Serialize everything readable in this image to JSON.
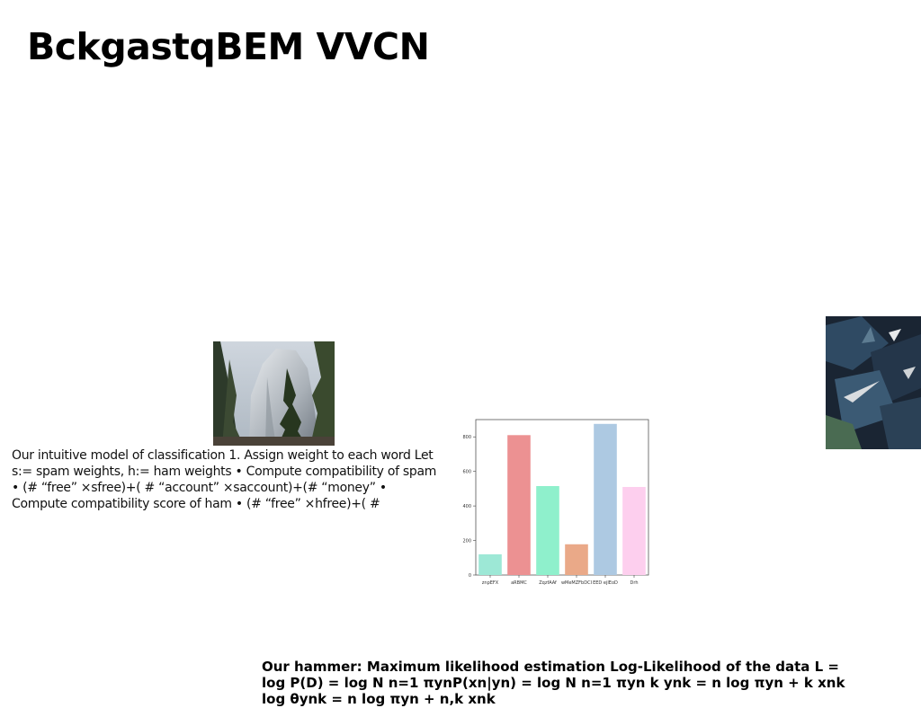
{
  "slide": {
    "title": "BckgastqBEM VVCN",
    "body_text": "Our intuitive model of classification 1. Assign weight to each word Let s:= spam weights, h:= ham weights • Compute compatibility of spam • (# “free” ×sfree)+( # “account” ×saccount)+(# “money” • Compute compatibility score of ham • (# “free” ×hfree)+( #",
    "bottom_text": "Our hammer: Maximum likelihood estimation Log-Likelihood of the data L = log P(D) = log N  n=1 πynP(xn|yn) = log N  n=1  πyn  k ynk  =  n  log πyn +  k xnk log θynk  =  n log πyn +  n,k xnk"
  },
  "images": {
    "left_photo": "mountain-cliff-with-trees-photo",
    "right_photo": "dark-feathers-abstract-photo"
  },
  "chart_data": {
    "type": "bar",
    "categories": [
      "znpEFX",
      "aRBMC",
      "ZqzfAAf",
      "wMeMZFbDCI",
      "EED ejIEoD",
      "Drh"
    ],
    "values": [
      120,
      810,
      515,
      178,
      875,
      510
    ],
    "colors": [
      "#9de8d6",
      "#ec9192",
      "#8ff0cc",
      "#eaa988",
      "#adc9e2",
      "#fdcfee"
    ],
    "yticks": [
      0,
      200,
      400,
      600,
      800
    ],
    "ylim": [
      0,
      900
    ],
    "title": "",
    "xlabel": "",
    "ylabel": ""
  }
}
